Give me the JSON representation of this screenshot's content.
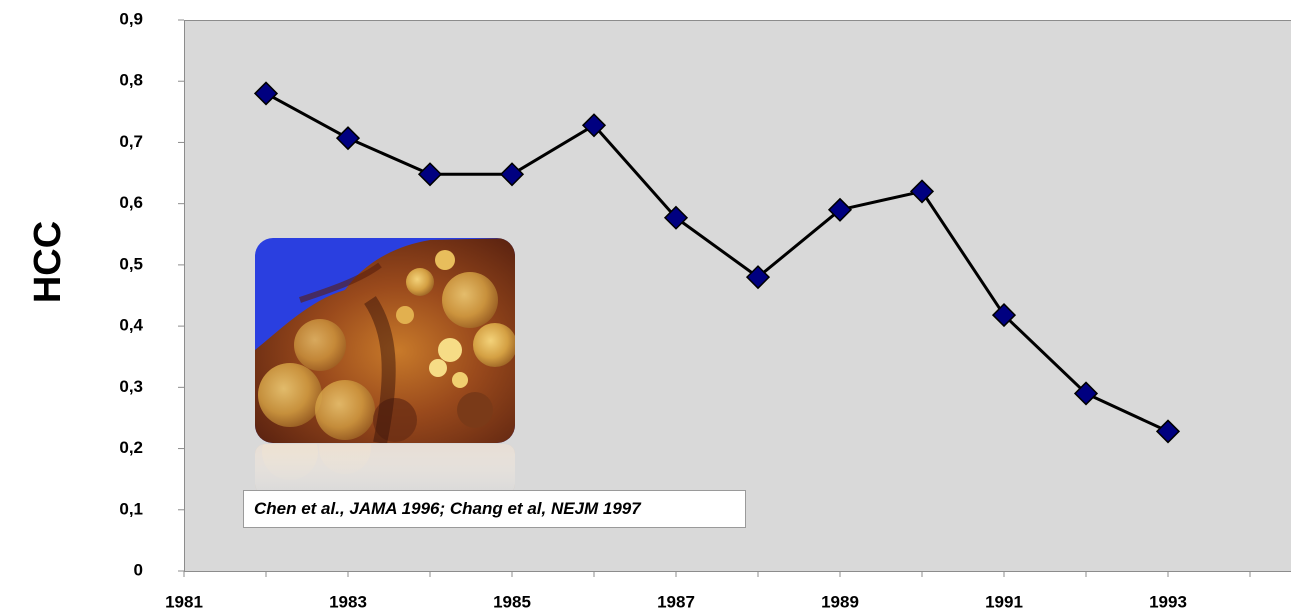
{
  "chart_data": {
    "type": "line",
    "title": "",
    "xlabel": "",
    "ylabel": "HCC",
    "x_tick_labels": [
      "1981",
      "1983",
      "1985",
      "1987",
      "1989",
      "1991",
      "1993"
    ],
    "y_tick_labels": [
      "0",
      "0,1",
      "0,2",
      "0,3",
      "0,4",
      "0,5",
      "0,6",
      "0,7",
      "0,8",
      "0,9"
    ],
    "xlim": [
      1981,
      1994.5
    ],
    "ylim": [
      0,
      0.9
    ],
    "grid": false,
    "background_color": "#d9d9d9",
    "series": [
      {
        "color": "#000000",
        "marker": "diamond",
        "marker_color": "#000080",
        "x": [
          1982,
          1983,
          1984,
          1985,
          1986,
          1987,
          1988,
          1989,
          1990,
          1991,
          1992,
          1993
        ],
        "y": [
          0.78,
          0.707,
          0.648,
          0.648,
          0.728,
          0.577,
          0.48,
          0.59,
          0.62,
          0.418,
          0.29,
          0.228
        ]
      }
    ],
    "annotations": [
      {
        "text": "Chen et al., JAMA 1996; Chang et al, NEJM 1997",
        "style": "bold-italic"
      }
    ],
    "inset_image": "liver-tumor-photo"
  }
}
